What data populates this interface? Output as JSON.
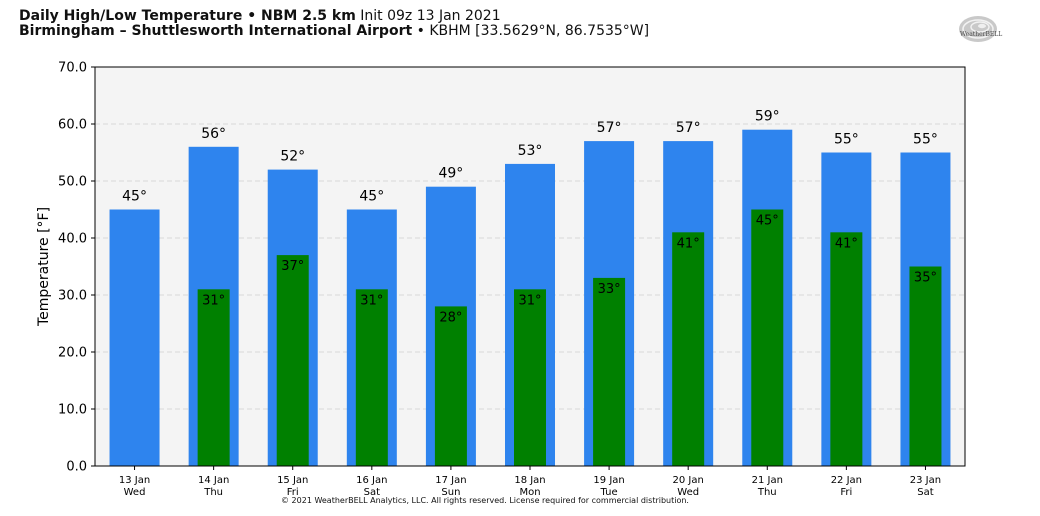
{
  "header": {
    "title_bold": "Daily High/Low Temperature • NBM 2.5 km",
    "init_text": "Init 09z 13 Jan 2021",
    "station_bold": "Birmingham – Shuttlesworth International Airport",
    "station_info": "• KBHM [33.5629°N, 86.7535°W]"
  },
  "logo": {
    "icon": "weatherbell-swirl-logo",
    "text": "WeatherBELL"
  },
  "footer": {
    "copyright": "© 2021 WeatherBELL Analytics, LLC. All rights reserved. License required for commercial distribution."
  },
  "chart_data": {
    "type": "bar",
    "categories": [
      "13 Jan",
      "14 Jan",
      "15 Jan",
      "16 Jan",
      "17 Jan",
      "18 Jan",
      "19 Jan",
      "20 Jan",
      "21 Jan",
      "22 Jan",
      "23 Jan"
    ],
    "weekdays": [
      "Wed",
      "Thu",
      "Fri",
      "Sat",
      "Sun",
      "Mon",
      "Tue",
      "Wed",
      "Thu",
      "Fri",
      "Sat"
    ],
    "series": [
      {
        "role": "high",
        "color": "#2e84ee",
        "values": [
          45,
          56,
          52,
          45,
          49,
          53,
          57,
          57,
          59,
          55,
          55
        ]
      },
      {
        "role": "low",
        "color": "#008000",
        "values": [
          null,
          31,
          37,
          31,
          28,
          31,
          33,
          41,
          45,
          41,
          35
        ]
      }
    ],
    "ylabel": "Temperature [°F]",
    "ylim": [
      0,
      70
    ],
    "yticks": [
      "0.0",
      "10.0",
      "20.0",
      "30.0",
      "40.0",
      "50.0",
      "60.0",
      "70.0"
    ],
    "grid": true,
    "plot_background": "#f4f4f4",
    "label_suffix": "°"
  }
}
